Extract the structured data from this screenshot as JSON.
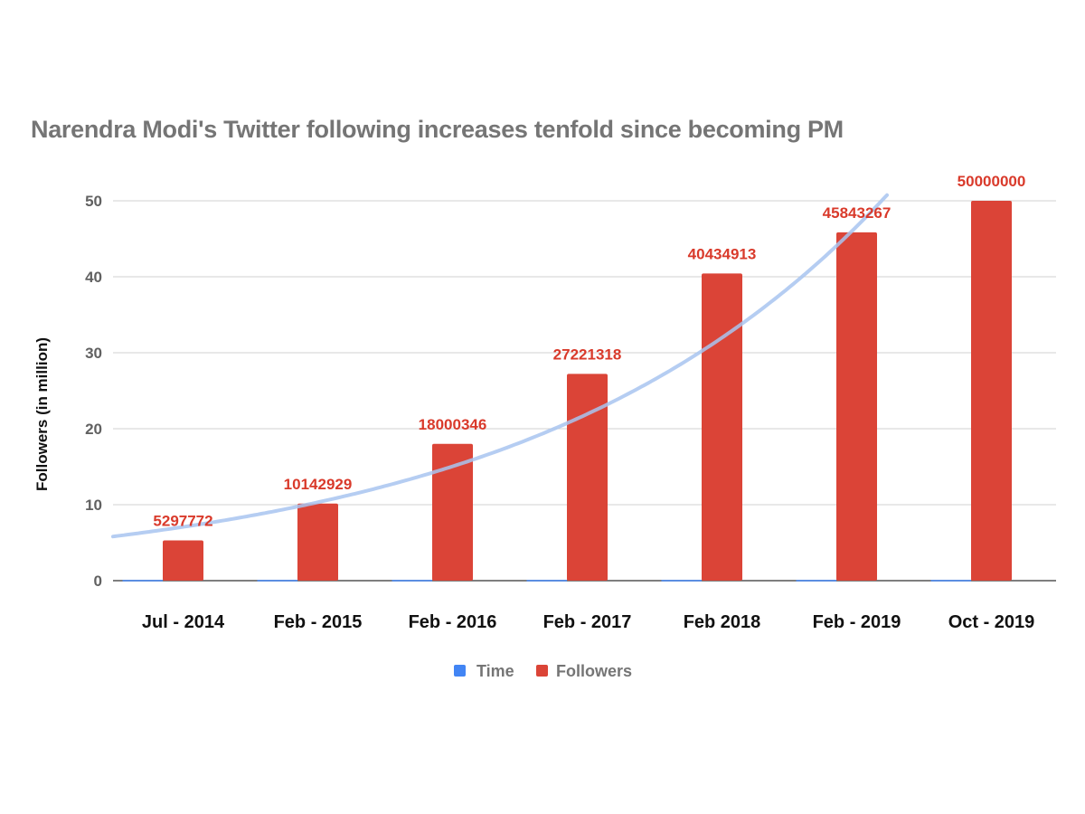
{
  "chart_data": {
    "type": "bar",
    "title": "Narendra Modi's Twitter following increases tenfold since becoming PM",
    "xlabel": "",
    "ylabel": "Followers (in million)",
    "categories": [
      "Jul - 2014",
      "Feb - 2015",
      "Feb - 2016",
      "Feb - 2017",
      "Feb 2018",
      "Feb - 2019",
      "Oct - 2019"
    ],
    "series": [
      {
        "name": "Time",
        "color": "#4285f4",
        "values": [
          0,
          0,
          0,
          0,
          0,
          0,
          0
        ]
      },
      {
        "name": "Followers",
        "color": "#db4437",
        "values": [
          5.297772,
          10.142929,
          18.000346,
          27.221318,
          40.434913,
          45.843267,
          50.0
        ],
        "data_labels": [
          "5297772",
          "10142929",
          "18000346",
          "27221318",
          "40434913",
          "45843267",
          "50000000"
        ]
      }
    ],
    "trendline": {
      "type": "exponential",
      "series": "Followers",
      "color": "#a8c4f0"
    },
    "ylim": [
      0,
      50
    ],
    "yticks": [
      0,
      10,
      20,
      30,
      40,
      50
    ],
    "grid": true,
    "legend": "bottom"
  }
}
